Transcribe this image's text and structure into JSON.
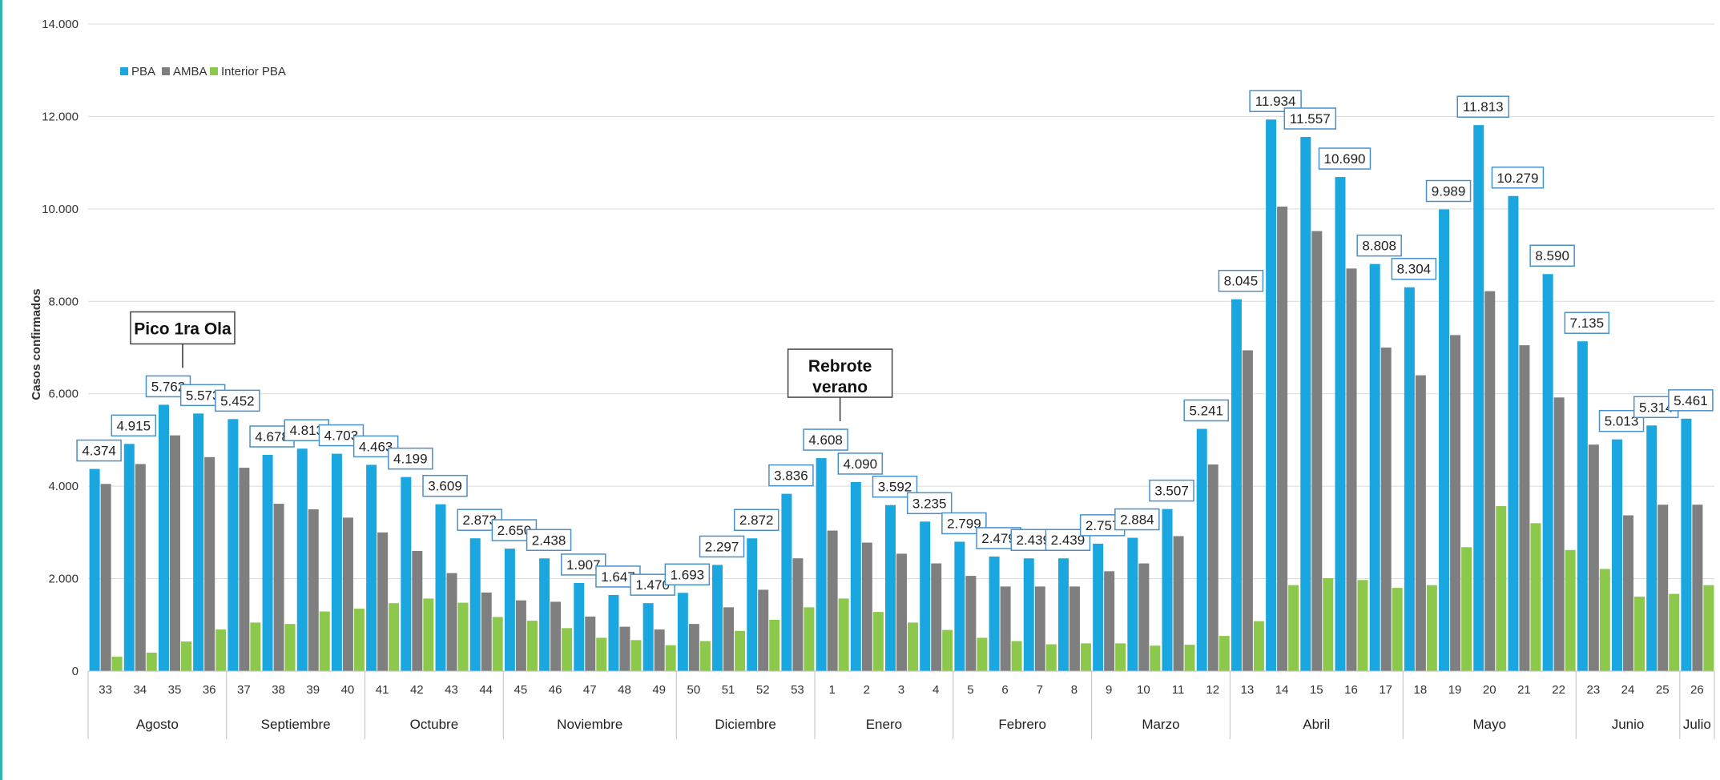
{
  "chart_data": {
    "type": "bar",
    "ylabel": "Casos confirmados",
    "ylim": [
      0,
      14000
    ],
    "yticks": [
      "0",
      "2.000",
      "4.000",
      "6.000",
      "8.000",
      "10.000",
      "12.000",
      "14.000"
    ],
    "categories": [
      "33",
      "34",
      "35",
      "36",
      "37",
      "38",
      "39",
      "40",
      "41",
      "42",
      "43",
      "44",
      "45",
      "46",
      "47",
      "48",
      "49",
      "50",
      "51",
      "52",
      "53",
      "1",
      "2",
      "3",
      "4",
      "5",
      "6",
      "7",
      "8",
      "9",
      "10",
      "11",
      "12",
      "13",
      "14",
      "15",
      "16",
      "17",
      "18",
      "19",
      "20",
      "21",
      "22",
      "23",
      "24",
      "25",
      "26"
    ],
    "data_labels": [
      "4.374",
      "4.915",
      "5.762",
      "5.573",
      "5.452",
      "4.678",
      "4.813",
      "4.703",
      "4.463",
      "4.199",
      "3.609",
      "2.873",
      "2.650",
      "2.438",
      "1.907",
      "1.647",
      "1.470",
      "1.693",
      "2.297",
      "2.872",
      "3.836",
      "4.608",
      "4.090",
      "3.592",
      "3.235",
      "2.799",
      "2.479",
      "2.439",
      "2.439",
      "2.757",
      "2.884",
      "3.507",
      "5.241",
      "8.045",
      "11.934",
      "11.557",
      "10.690",
      "8.808",
      "8.304",
      "9.989",
      "11.813",
      "10.279",
      "8.590",
      "7.135",
      "5.013",
      "5.314",
      "5.461"
    ],
    "series": [
      {
        "name": "PBA",
        "color": "#1aa7df",
        "values": [
          4374,
          4915,
          5762,
          5573,
          5452,
          4678,
          4813,
          4703,
          4463,
          4199,
          3609,
          2873,
          2650,
          2438,
          1907,
          1647,
          1470,
          1693,
          2297,
          2872,
          3836,
          4608,
          4090,
          3592,
          3235,
          2799,
          2479,
          2439,
          2439,
          2757,
          2884,
          3507,
          5241,
          8045,
          11934,
          11557,
          10690,
          8808,
          8304,
          9989,
          11813,
          10279,
          8590,
          7135,
          5013,
          5314,
          5461
        ]
      },
      {
        "name": "AMBA",
        "color": "#7f7f7f",
        "values": [
          4050,
          4480,
          5100,
          4630,
          4400,
          3620,
          3500,
          3320,
          3000,
          2600,
          2120,
          1700,
          1530,
          1500,
          1180,
          960,
          900,
          1020,
          1380,
          1760,
          2440,
          3040,
          2780,
          2540,
          2330,
          2060,
          1830,
          1830,
          1830,
          2160,
          2330,
          2920,
          4470,
          6940,
          10050,
          9520,
          8710,
          7000,
          6400,
          7270,
          8220,
          7050,
          5920,
          4900,
          3370,
          3600,
          3600
        ]
      },
      {
        "name": "Interior PBA",
        "color": "#8cc84b",
        "values": [
          310,
          400,
          640,
          900,
          1050,
          1020,
          1290,
          1350,
          1470,
          1570,
          1480,
          1170,
          1090,
          930,
          720,
          670,
          560,
          650,
          870,
          1110,
          1380,
          1570,
          1280,
          1050,
          890,
          720,
          650,
          580,
          600,
          600,
          550,
          570,
          760,
          1080,
          1860,
          2010,
          1970,
          1800,
          1860,
          2680,
          3570,
          3200,
          2620,
          2210,
          1610,
          1670,
          1860
        ]
      }
    ],
    "months": [
      {
        "name": "Agosto",
        "count": 4
      },
      {
        "name": "Septiembre",
        "count": 4
      },
      {
        "name": "Octubre",
        "count": 4
      },
      {
        "name": "Noviembre",
        "count": 5
      },
      {
        "name": "Diciembre",
        "count": 4
      },
      {
        "name": "Enero",
        "count": 4
      },
      {
        "name": "Febrero",
        "count": 4
      },
      {
        "name": "Marzo",
        "count": 4
      },
      {
        "name": "Abril",
        "count": 5
      },
      {
        "name": "Mayo",
        "count": 5
      },
      {
        "name": "Junio",
        "count": 3
      },
      {
        "name": "Julio",
        "count": 1
      }
    ],
    "legend_position": "top-left",
    "annotations": [
      {
        "text": "Pico 1ra Ola",
        "category": "35"
      },
      {
        "text": "Rebrote verano",
        "category": "1"
      }
    ],
    "grid": true
  }
}
